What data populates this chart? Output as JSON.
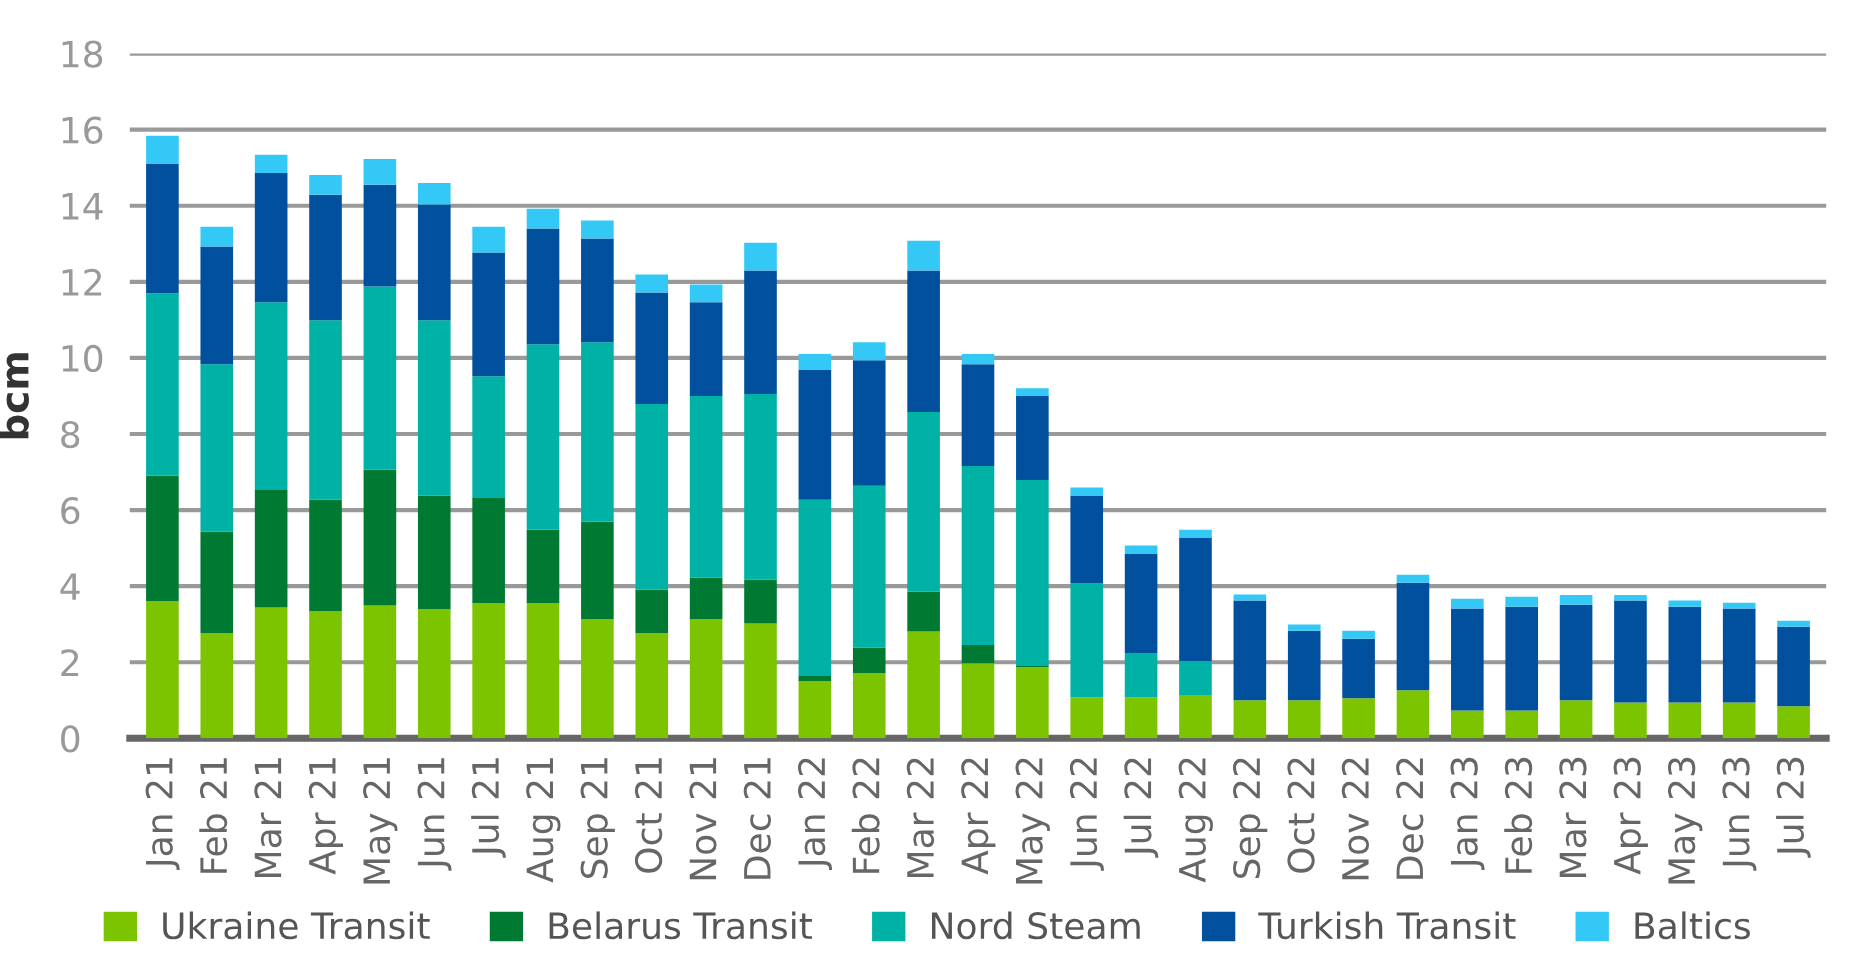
{
  "chart_data": {
    "type": "bar",
    "stacked": true,
    "ylabel": "bcm",
    "categories": [
      "Jan 21",
      "Feb 21",
      "Mar 21",
      "Apr 21",
      "May 21",
      "Jun 21",
      "Jul 21",
      "Aug 21",
      "Sep 21",
      "Oct 21",
      "Nov 21",
      "Dec 21",
      "Jan 22",
      "Feb 22",
      "Mar 22",
      "Apr 22",
      "May 22",
      "Jun 22",
      "Jul 22",
      "Aug 22",
      "Sep 22",
      "Oct 22",
      "Nov 22",
      "Dec 22",
      "Jan 23",
      "Feb 23",
      "Mar 23",
      "Apr 23",
      "May 23",
      "Jun 23",
      "Jul 23"
    ],
    "series": [
      {
        "name": "Ukraine Transit",
        "color": "#7dc400",
        "values": [
          3.6,
          2.76,
          3.44,
          3.34,
          3.49,
          3.39,
          3.55,
          3.55,
          3.13,
          2.76,
          3.13,
          3.02,
          1.5,
          1.71,
          2.81,
          1.97,
          1.87,
          1.08,
          1.08,
          1.14,
          1.0,
          1.0,
          1.05,
          1.26,
          0.73,
          0.73,
          1.0,
          0.94,
          0.94,
          0.94,
          0.84
        ]
      },
      {
        "name": "Belarus Transit",
        "color": "#007a33",
        "values": [
          3.3,
          2.67,
          3.09,
          2.93,
          3.57,
          2.99,
          2.77,
          1.93,
          2.56,
          1.15,
          1.1,
          1.15,
          0.16,
          0.68,
          1.05,
          0.48,
          0.05,
          0,
          0,
          0,
          0,
          0,
          0,
          0,
          0,
          0,
          0,
          0,
          0,
          0,
          0
        ]
      },
      {
        "name": "Nord Steam",
        "color": "#00b2a5",
        "values": [
          4.8,
          4.4,
          4.93,
          4.72,
          4.82,
          4.61,
          3.2,
          4.88,
          4.72,
          4.88,
          4.77,
          4.88,
          4.61,
          4.25,
          4.72,
          4.71,
          4.87,
          2.99,
          1.16,
          0.89,
          0,
          0,
          0,
          0,
          0,
          0,
          0,
          0,
          0,
          0,
          0
        ]
      },
      {
        "name": "Turkish Transit",
        "color": "#00509e",
        "values": [
          3.4,
          3.1,
          3.4,
          3.3,
          2.67,
          3.04,
          3.25,
          3.04,
          2.73,
          2.93,
          2.46,
          3.25,
          3.41,
          3.3,
          3.72,
          2.67,
          2.21,
          2.31,
          2.62,
          3.25,
          2.62,
          1.83,
          1.57,
          2.83,
          2.68,
          2.73,
          2.51,
          2.68,
          2.52,
          2.47,
          2.09
        ]
      },
      {
        "name": "Baltics",
        "color": "#33c8f5",
        "values": [
          0.74,
          0.52,
          0.48,
          0.52,
          0.68,
          0.57,
          0.68,
          0.52,
          0.47,
          0.47,
          0.47,
          0.73,
          0.42,
          0.47,
          0.78,
          0.27,
          0.2,
          0.21,
          0.21,
          0.2,
          0.16,
          0.16,
          0.21,
          0.21,
          0.26,
          0.26,
          0.26,
          0.15,
          0.16,
          0.15,
          0.16
        ]
      }
    ],
    "ylim": [
      0,
      18
    ],
    "yticks": [
      0,
      2,
      4,
      6,
      8,
      10,
      12,
      14,
      16,
      18
    ],
    "grid": "y",
    "legend": "bottom"
  }
}
